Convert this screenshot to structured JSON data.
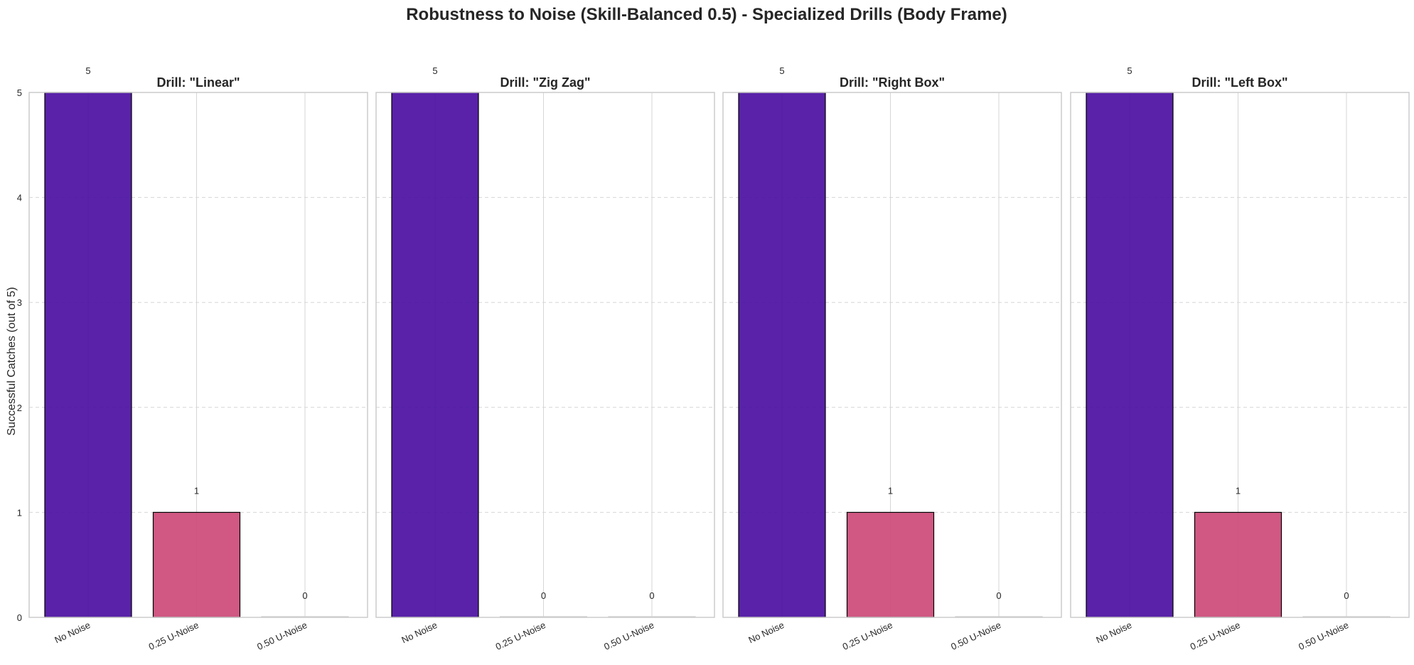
{
  "figure": {
    "title": "Robustness to Noise (Skill-Balanced 0.5) - Specialized Drills (Body Frame)",
    "ylabel": "Successful Catches (out of 5)"
  },
  "colors": {
    "No Noise": "#4b0fa1",
    "0.25 U-Noise": "#cc4a77",
    "0.50 U-Noise": "#f2a640"
  },
  "chart_data": [
    {
      "type": "bar",
      "title": "Drill: \"Linear\"",
      "categories": [
        "No Noise",
        "0.25 U-Noise",
        "0.50 U-Noise"
      ],
      "values": [
        5,
        1,
        0
      ],
      "ylim": [
        0,
        5
      ],
      "yticks": [
        0,
        1,
        2,
        3,
        4,
        5
      ],
      "grid": true
    },
    {
      "type": "bar",
      "title": "Drill: \"Zig Zag\"",
      "categories": [
        "No Noise",
        "0.25 U-Noise",
        "0.50 U-Noise"
      ],
      "values": [
        5,
        0,
        0
      ],
      "ylim": [
        0,
        5
      ],
      "yticks": [
        0,
        1,
        2,
        3,
        4,
        5
      ],
      "grid": true
    },
    {
      "type": "bar",
      "title": "Drill: \"Right Box\"",
      "categories": [
        "No Noise",
        "0.25 U-Noise",
        "0.50 U-Noise"
      ],
      "values": [
        5,
        1,
        0
      ],
      "ylim": [
        0,
        5
      ],
      "yticks": [
        0,
        1,
        2,
        3,
        4,
        5
      ],
      "grid": true
    },
    {
      "type": "bar",
      "title": "Drill: \"Left Box\"",
      "categories": [
        "No Noise",
        "0.25 U-Noise",
        "0.50 U-Noise"
      ],
      "values": [
        5,
        1,
        0
      ],
      "ylim": [
        0,
        5
      ],
      "yticks": [
        0,
        1,
        2,
        3,
        4,
        5
      ],
      "grid": true
    }
  ]
}
